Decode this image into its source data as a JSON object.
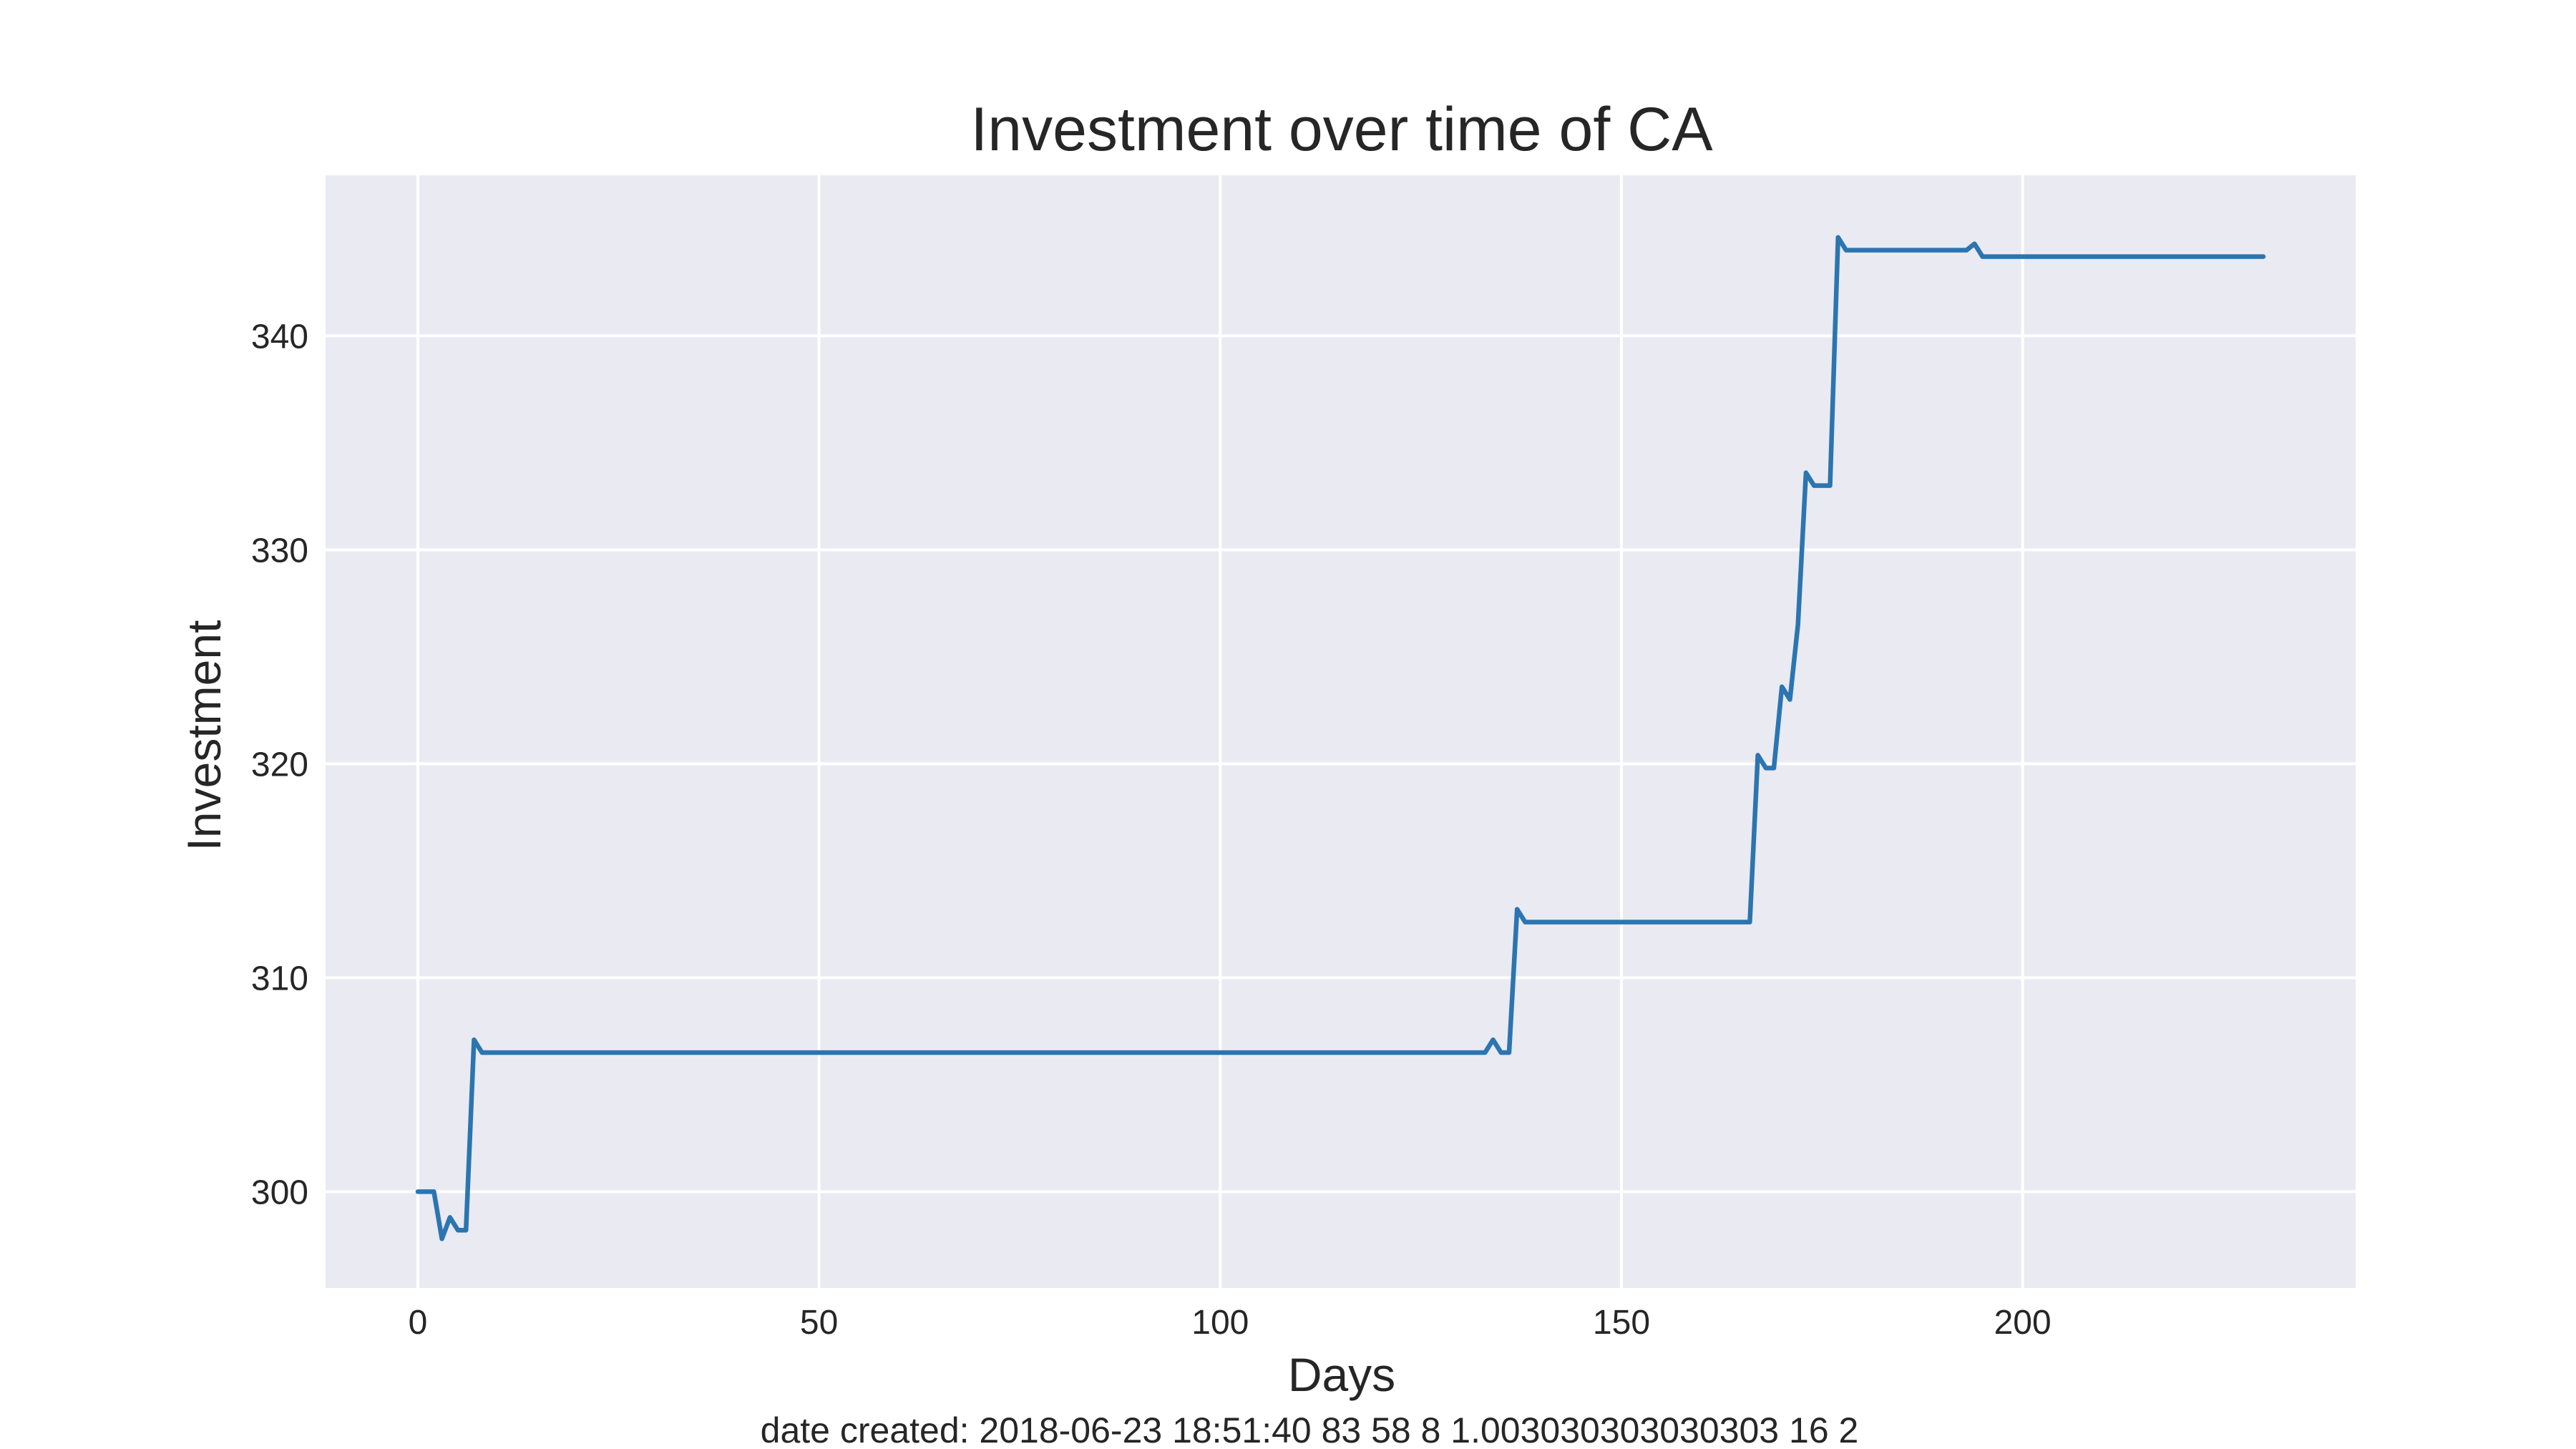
{
  "chart_data": {
    "type": "line",
    "title": "Investment over time of CA",
    "xlabel": "Days",
    "ylabel": "Investment",
    "xlim": [
      -11.5,
      241.5
    ],
    "ylim": [
      295.5,
      347.5
    ],
    "xticks": [
      0,
      50,
      100,
      150,
      200
    ],
    "yticks": [
      300,
      310,
      320,
      330,
      340
    ],
    "grid": true,
    "legend": "none",
    "background_color": "#eaeaf2",
    "series": [
      {
        "color": "#2b75b0",
        "points": [
          [
            0,
            300.0
          ],
          [
            2,
            300.0
          ],
          [
            3,
            297.8
          ],
          [
            4,
            298.8
          ],
          [
            5,
            298.2
          ],
          [
            6,
            298.2
          ],
          [
            7,
            307.1
          ],
          [
            8,
            306.5
          ],
          [
            9,
            306.5
          ],
          [
            30,
            306.5
          ],
          [
            60,
            306.5
          ],
          [
            90,
            306.5
          ],
          [
            120,
            306.5
          ],
          [
            133,
            306.5
          ],
          [
            134,
            307.1
          ],
          [
            135,
            306.5
          ],
          [
            136,
            306.5
          ],
          [
            137,
            313.2
          ],
          [
            138,
            312.6
          ],
          [
            150,
            312.6
          ],
          [
            166,
            312.6
          ],
          [
            167,
            320.4
          ],
          [
            168,
            319.8
          ],
          [
            169,
            319.8
          ],
          [
            170,
            323.6
          ],
          [
            171,
            323.0
          ],
          [
            172,
            326.5
          ],
          [
            173,
            333.6
          ],
          [
            174,
            333.0
          ],
          [
            176,
            333.0
          ],
          [
            177,
            344.6
          ],
          [
            178,
            344.0
          ],
          [
            185,
            344.0
          ],
          [
            193,
            344.0
          ],
          [
            194,
            344.3
          ],
          [
            195,
            343.7
          ],
          [
            200,
            343.7
          ],
          [
            215,
            343.7
          ],
          [
            230,
            343.7
          ]
        ]
      }
    ]
  },
  "footer": {
    "text": "date created: 2018-06-23 18:51:40 83 58 8 1.003030303030303 16 2"
  }
}
